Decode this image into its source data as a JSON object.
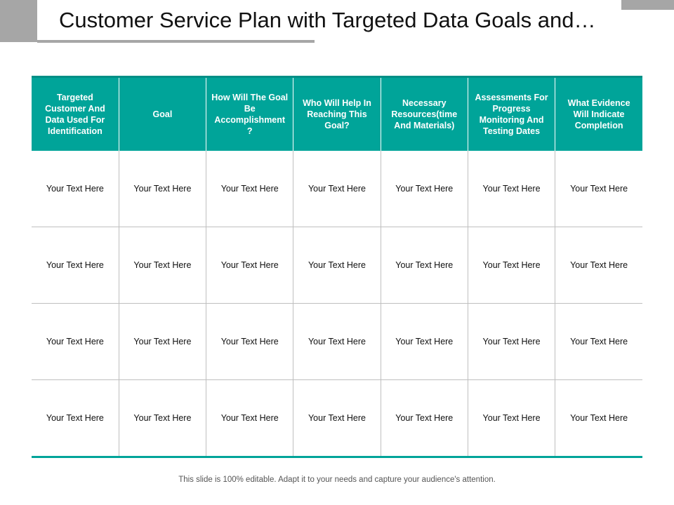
{
  "slide": {
    "title": "Customer Service Plan with Targeted Data Goals and…",
    "footer": "This slide is 100% editable. Adapt it to your needs and capture your audience's attention."
  },
  "table": {
    "headers": [
      "Targeted Customer And Data Used For Identification",
      "Goal",
      "How Will The Goal Be Accomplishment ?",
      "Who Will Help In Reaching This Goal?",
      "Necessary Resources(time And Materials)",
      "Assessments For Progress Monitoring And Testing Dates",
      "What Evidence Will Indicate Completion"
    ],
    "rows": [
      [
        "Your Text Here",
        "Your Text Here",
        "Your Text Here",
        "Your Text Here",
        "Your Text Here",
        "Your Text Here",
        "Your Text Here"
      ],
      [
        "Your Text Here",
        "Your Text Here",
        "Your Text Here",
        "Your Text Here",
        "Your Text Here",
        "Your Text Here",
        "Your Text Here"
      ],
      [
        "Your Text Here",
        "Your Text Here",
        "Your Text Here",
        "Your Text Here",
        "Your Text Here",
        "Your Text Here",
        "Your Text Here"
      ],
      [
        "Your Text Here",
        "Your Text Here",
        "Your Text Here",
        "Your Text Here",
        "Your Text Here",
        "Your Text Here",
        "Your Text Here"
      ]
    ]
  },
  "colors": {
    "accent": "#00a499",
    "decoration": "#a6a6a6"
  }
}
